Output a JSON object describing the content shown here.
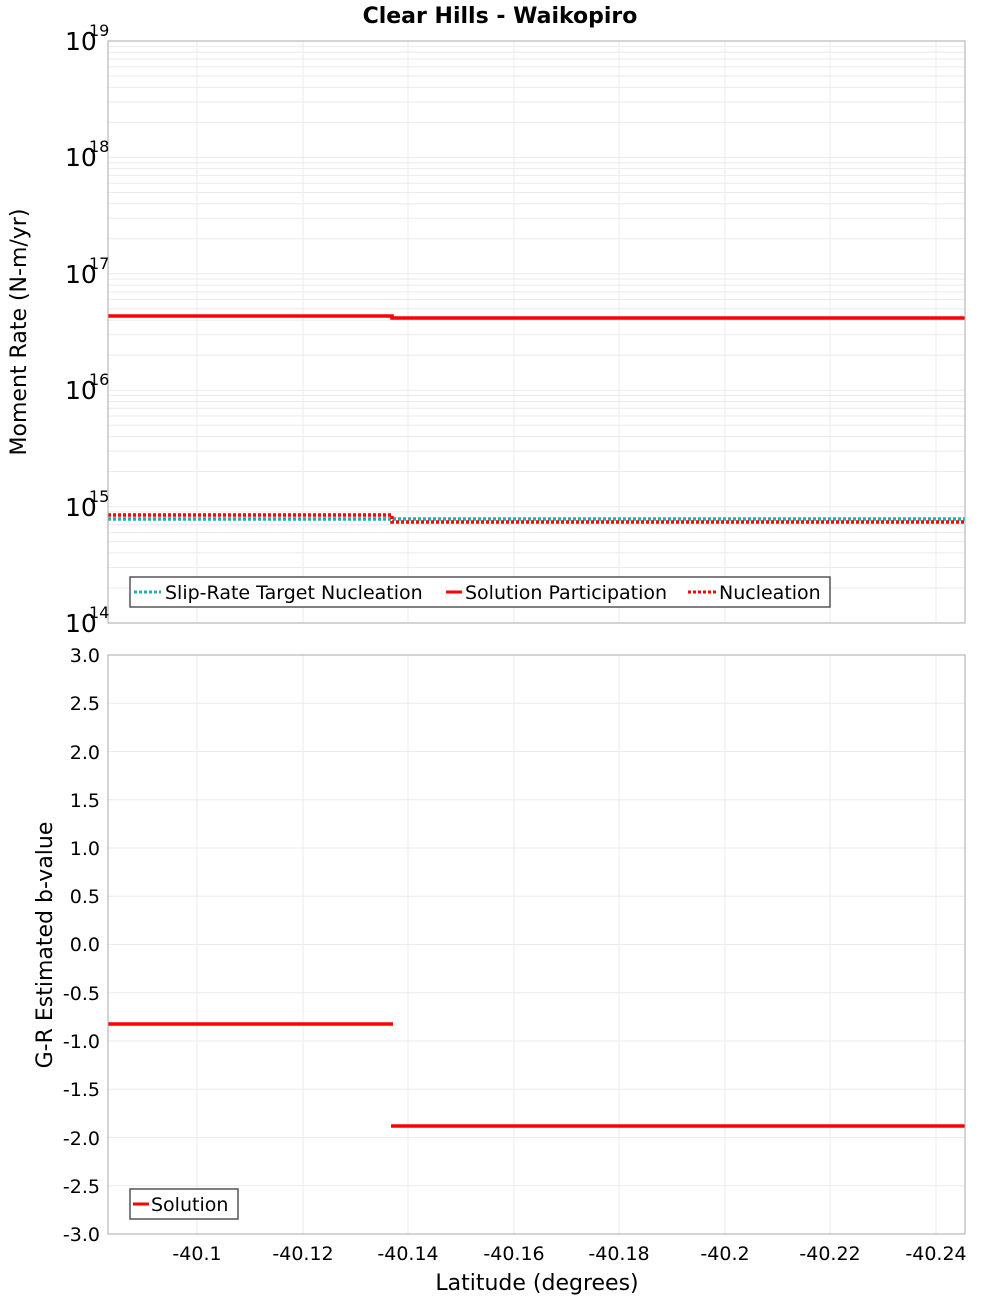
{
  "chart_data": [
    {
      "type": "line",
      "title": "Clear Hills - Waikopiro",
      "xlabel": "Latitude (degrees)",
      "ylabel": "Moment Rate (N-m/yr)",
      "yscale": "log",
      "ylim": [
        100000000000000.0,
        1e+19
      ],
      "xlim": [
        -40.083,
        -40.2455
      ],
      "x_inverted_direction": "left-to-right decreasing latitude",
      "grid": true,
      "legend_position": "lower-left",
      "ytick_labels": [
        {
          "base": "10",
          "exp": "19"
        },
        {
          "base": "10",
          "exp": "18"
        },
        {
          "base": "10",
          "exp": "17"
        },
        {
          "base": "10",
          "exp": "16"
        },
        {
          "base": "10",
          "exp": "15"
        },
        {
          "base": "10",
          "exp": "14"
        }
      ],
      "series": [
        {
          "name": "Slip-Rate Target Nucleation",
          "style": "dotted",
          "color": "#19b2b2",
          "x": [
            -40.083,
            -40.1369,
            -40.1369,
            -40.2455
          ],
          "values": [
            780000000000000.0,
            780000000000000.0,
            780000000000000.0,
            780000000000000.0
          ]
        },
        {
          "name": "Solution Participation",
          "style": "solid",
          "color": "#ff0000",
          "x": [
            -40.083,
            -40.1369,
            -40.1369,
            -40.2455
          ],
          "values": [
            4.35e+16,
            4.35e+16,
            4.17e+16,
            4.17e+16
          ]
        },
        {
          "name": "Nucleation",
          "style": "dotted",
          "color": "#ff0000",
          "x": [
            -40.083,
            -40.1369,
            -40.1369,
            -40.2455
          ],
          "values": [
            850000000000000.0,
            850000000000000.0,
            740000000000000.0,
            740000000000000.0
          ]
        }
      ]
    },
    {
      "type": "line",
      "title": "",
      "xlabel": "Latitude (degrees)",
      "ylabel": "G-R Estimated b-value",
      "ylim": [
        -3.0,
        3.0
      ],
      "xlim": [
        -40.083,
        -40.2455
      ],
      "grid": true,
      "legend_position": "lower-left",
      "ytick_labels": [
        "3.0",
        "2.5",
        "2.0",
        "1.5",
        "1.0",
        "0.5",
        "0.0",
        "-0.5",
        "-1.0",
        "-1.5",
        "-2.0",
        "-2.5",
        "-3.0"
      ],
      "xtick_labels": [
        "-40.1",
        "-40.12",
        "-40.14",
        "-40.16",
        "-40.18",
        "-40.2",
        "-40.22",
        "-40.24"
      ],
      "series": [
        {
          "name": "Solution",
          "style": "solid",
          "color": "#ff0000",
          "segments": [
            {
              "x": [
                -40.083,
                -40.1369
              ],
              "values": [
                -0.82,
                -0.82
              ]
            },
            {
              "x": [
                -40.1369,
                -40.2455
              ],
              "values": [
                -1.88,
                -1.88
              ]
            }
          ]
        }
      ]
    }
  ],
  "title": "Clear Hills - Waikopiro",
  "top": {
    "ylabel": "Moment Rate (N-m/yr)",
    "ticks": [
      {
        "base": "10",
        "exp": "19"
      },
      {
        "base": "10",
        "exp": "18"
      },
      {
        "base": "10",
        "exp": "17"
      },
      {
        "base": "10",
        "exp": "16"
      },
      {
        "base": "10",
        "exp": "15"
      },
      {
        "base": "10",
        "exp": "14"
      }
    ],
    "legend": [
      "Slip-Rate Target Nucleation",
      "Solution Participation",
      "Nucleation"
    ]
  },
  "bottom": {
    "ylabel": "G-R Estimated b-value",
    "yticks": [
      "3.0",
      "2.5",
      "2.0",
      "1.5",
      "1.0",
      "0.5",
      "0.0",
      "-0.5",
      "-1.0",
      "-1.5",
      "-2.0",
      "-2.5",
      "-3.0"
    ],
    "xticks": [
      "-40.1",
      "-40.12",
      "-40.14",
      "-40.16",
      "-40.18",
      "-40.2",
      "-40.22",
      "-40.24"
    ],
    "xlabel": "Latitude (degrees)",
    "legend": [
      "Solution"
    ]
  },
  "colors": {
    "red": "#ff0000",
    "cyan": "#19b2b2",
    "grid": "#ebebeb",
    "axis": "#a8a8a8"
  }
}
